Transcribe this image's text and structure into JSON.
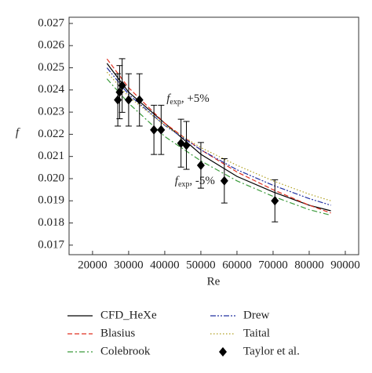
{
  "chart_data": {
    "type": "line",
    "x_label": "Re",
    "y_label": "f",
    "xlim": [
      13500,
      93700
    ],
    "ylim": [
      0.01657,
      0.02728
    ],
    "xticks": [
      20000,
      30000,
      40000,
      50000,
      60000,
      70000,
      80000,
      90000
    ],
    "yticks": [
      0.017,
      0.018,
      0.019,
      {
        "value": 0.02,
        "label": "0.020"
      },
      0.021,
      0.022,
      0.023,
      0.024,
      0.025,
      0.026,
      0.027
    ],
    "annotations": [
      {
        "symbol": "f",
        "subscript": "exp",
        "text": ", +5%",
        "x": 40500,
        "y": 0.02356
      },
      {
        "symbol": "f",
        "subscript": "exp",
        "text": ", -5%",
        "x": 42800,
        "y": 0.01985
      }
    ],
    "series": [
      {
        "name": "CFD_HeXe",
        "color": "#000000",
        "line_style": "solid",
        "x": [
          24000,
          30000,
          40000,
          50000,
          60000,
          70000,
          80000,
          86000
        ],
        "values": [
          0.0252,
          0.0239,
          0.0225,
          0.0211,
          0.0201,
          0.0194,
          0.0188,
          0.01855
        ]
      },
      {
        "name": "Blasius",
        "color": "#e03020",
        "line_style": "dashed",
        "x": [
          24000,
          30000,
          40000,
          50000,
          60000,
          70000,
          80000,
          86000
        ],
        "values": [
          0.0254,
          0.0241,
          0.0225,
          0.0213,
          0.0203,
          0.0195,
          0.0188,
          0.01845
        ]
      },
      {
        "name": "Colebrook",
        "color": "#3a9a3a",
        "line_style": "dashdot",
        "x": [
          24000,
          30000,
          40000,
          50000,
          60000,
          70000,
          80000,
          86000
        ],
        "values": [
          0.0245,
          0.0234,
          0.0219,
          0.0208,
          0.0199,
          0.0192,
          0.0186,
          0.01835
        ]
      },
      {
        "name": "Drew",
        "color": "#2030a0",
        "line_style": "dashdotdot",
        "x": [
          24000,
          30000,
          40000,
          50000,
          60000,
          70000,
          80000,
          86000
        ],
        "values": [
          0.025,
          0.0238,
          0.0224,
          0.0213,
          0.0204,
          0.0197,
          0.0191,
          0.0188
        ]
      },
      {
        "name": "Taital",
        "color": "#b0a020",
        "line_style": "dotted",
        "x": [
          24000,
          30000,
          40000,
          50000,
          60000,
          70000,
          80000,
          86000
        ],
        "values": [
          0.0248,
          0.0237,
          0.0224,
          0.0214,
          0.0206,
          0.0199,
          0.0193,
          0.019
        ]
      },
      {
        "name": "Taylor et al.",
        "color": "#000000",
        "marker": "diamond",
        "x": [
          27000,
          27500,
          28200,
          30000,
          33000,
          37000,
          39000,
          44500,
          46000,
          50000,
          56500,
          70500
        ],
        "values": [
          0.02355,
          0.0239,
          0.0242,
          0.02355,
          0.02355,
          0.0222,
          0.0222,
          0.0216,
          0.0215,
          0.0206,
          0.0199,
          0.019
        ],
        "errors": [
          0.00118,
          0.0012,
          0.00121,
          0.00118,
          0.00118,
          0.00111,
          0.00111,
          0.00108,
          0.00108,
          0.00103,
          0.001,
          0.00095
        ]
      }
    ]
  }
}
